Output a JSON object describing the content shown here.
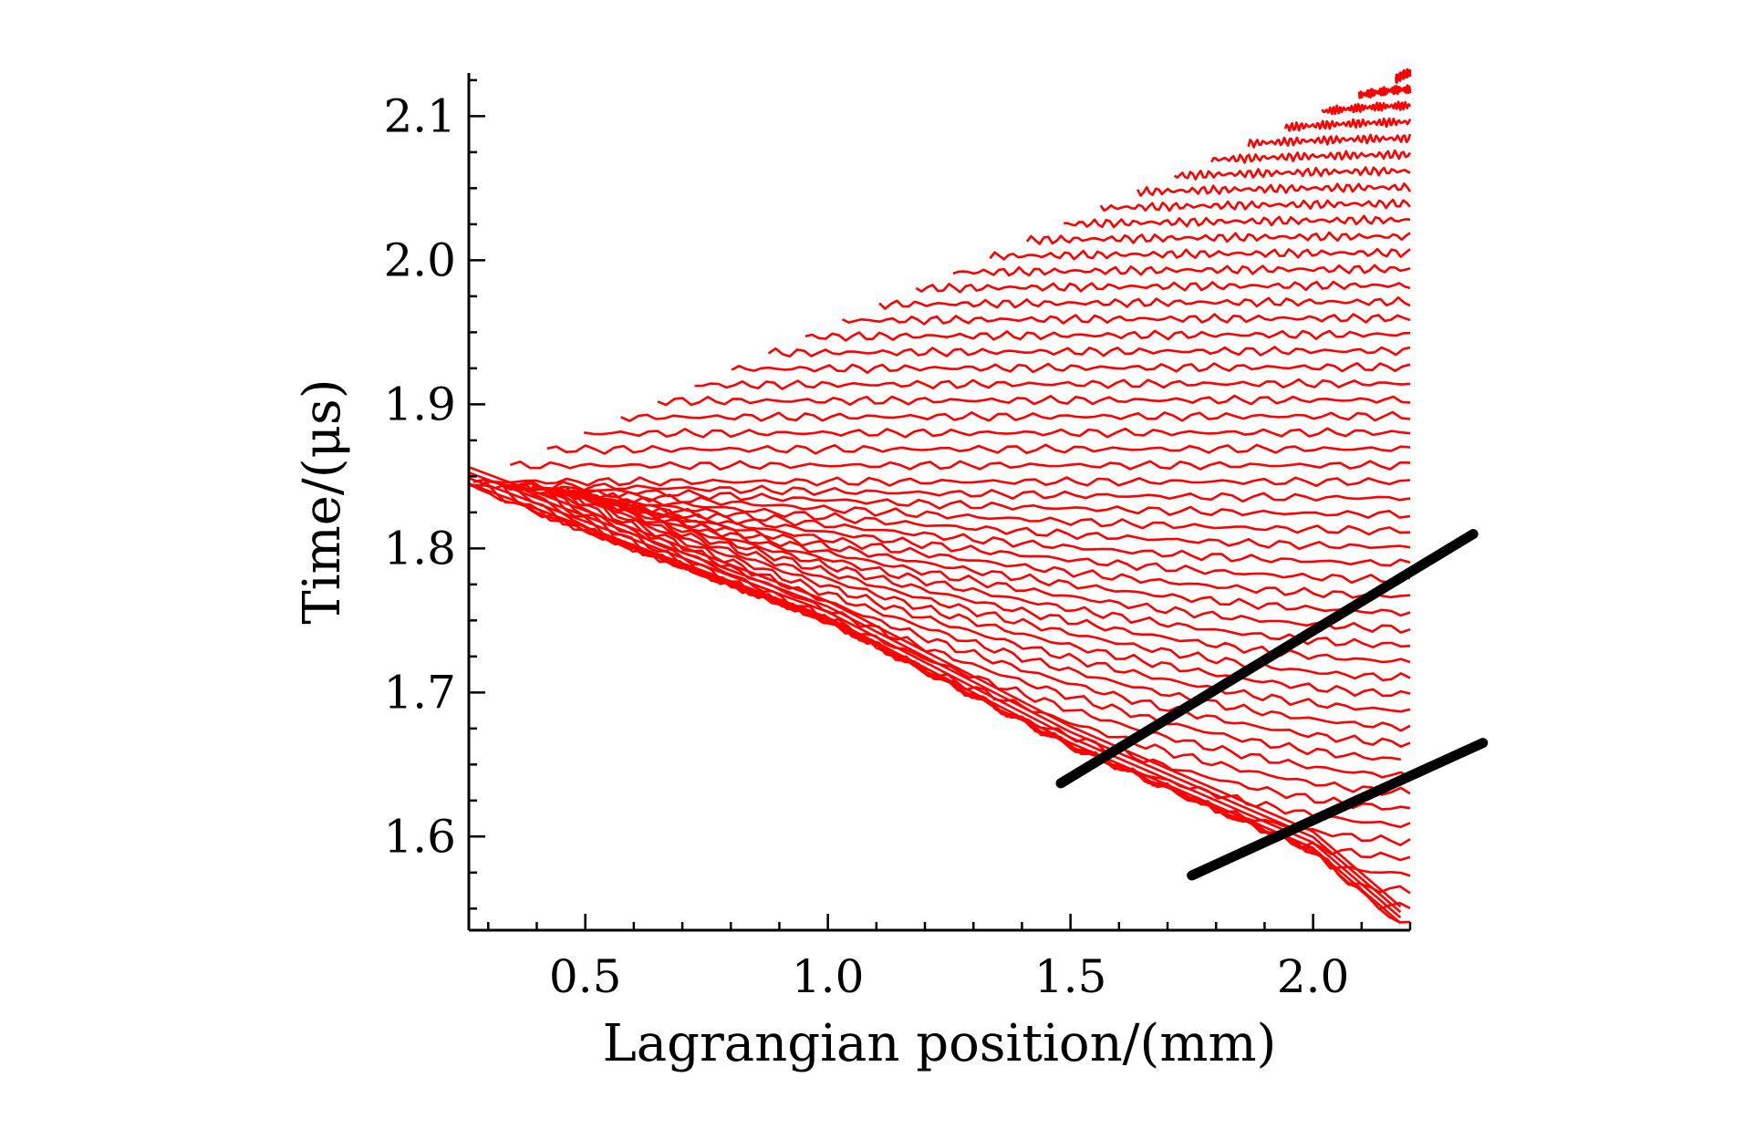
{
  "chart_data": {
    "type": "line",
    "title": "",
    "xlabel": "Lagrangian position/(mm)",
    "ylabel": "Time/(μs)",
    "xlim": [
      0.26,
      2.2
    ],
    "ylim": [
      1.535,
      2.13
    ],
    "x_ticks": [
      {
        "value": 0.5,
        "label": "0.5"
      },
      {
        "value": 1.0,
        "label": "1.0"
      },
      {
        "value": 1.5,
        "label": "1.5"
      },
      {
        "value": 2.0,
        "label": "2.0"
      }
    ],
    "y_ticks": [
      {
        "value": 1.6,
        "label": "1.6"
      },
      {
        "value": 1.7,
        "label": "1.7"
      },
      {
        "value": 1.8,
        "label": "1.8"
      },
      {
        "value": 1.9,
        "label": "1.9"
      },
      {
        "value": 2.0,
        "label": "2.0"
      },
      {
        "value": 2.1,
        "label": "2.1"
      }
    ],
    "grid": false,
    "legend": "none",
    "colors": {
      "traces": "#ff0000",
      "fit_lines": "#000000",
      "axes": "#000000"
    },
    "red_traces": {
      "description": "family of red Lagrangian-gauge traces; each trace starts on the upper envelope and ends at x = 2.2",
      "count": 53,
      "start": {
        "x": 0.26,
        "y": 1.845
      },
      "upper_envelope_end": {
        "x": 2.2,
        "y": 2.13
      },
      "lower_envelope": [
        {
          "x": 0.26,
          "y": 1.845
        },
        {
          "x": 1.0,
          "y": 1.752
        },
        {
          "x": 1.5,
          "y": 1.665
        },
        {
          "x": 2.0,
          "y": 1.592
        },
        {
          "x": 2.18,
          "y": 1.54
        }
      ],
      "end_slope": 0.0
    },
    "black_lines": [
      {
        "x": [
          1.48,
          2.33
        ],
        "y": [
          1.637,
          1.81
        ]
      },
      {
        "x": [
          1.75,
          2.35
        ],
        "y": [
          1.573,
          1.665
        ]
      }
    ]
  }
}
